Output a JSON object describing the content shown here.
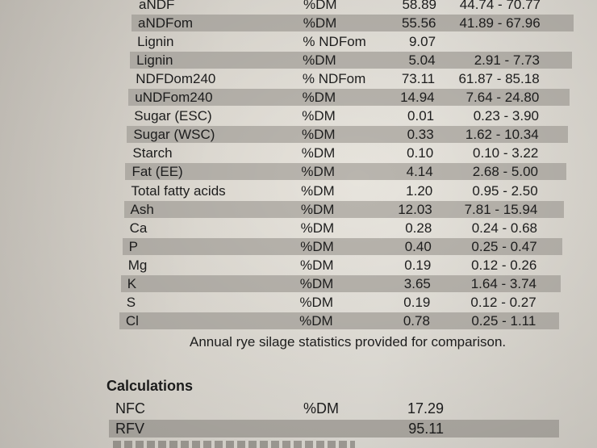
{
  "rows": [
    {
      "name": "aNDF",
      "unit": "%DM",
      "value": "58.89",
      "range": "44.74 - 70.77",
      "shaded": false
    },
    {
      "name": "aNDFom",
      "unit": "%DM",
      "value": "55.56",
      "range": "41.89 - 67.96",
      "shaded": true
    },
    {
      "name": "Lignin",
      "unit": "% NDFom",
      "value": "9.07",
      "range": "",
      "shaded": false
    },
    {
      "name": "Lignin",
      "unit": "%DM",
      "value": "5.04",
      "range": "2.91 - 7.73",
      "shaded": true
    },
    {
      "name": "NDFDom240",
      "unit": "% NDFom",
      "value": "73.11",
      "range": "61.87 - 85.18",
      "shaded": false
    },
    {
      "name": "uNDFom240",
      "unit": "%DM",
      "value": "14.94",
      "range": "7.64 - 24.80",
      "shaded": true
    },
    {
      "name": "Sugar (ESC)",
      "unit": "%DM",
      "value": "0.01",
      "range": "0.23 - 3.90",
      "shaded": false
    },
    {
      "name": "Sugar (WSC)",
      "unit": "%DM",
      "value": "0.33",
      "range": "1.62 - 10.34",
      "shaded": true
    },
    {
      "name": "Starch",
      "unit": "%DM",
      "value": "0.10",
      "range": "0.10 - 3.22",
      "shaded": false
    },
    {
      "name": "Fat (EE)",
      "unit": "%DM",
      "value": "4.14",
      "range": "2.68 - 5.00",
      "shaded": true
    },
    {
      "name": "Total fatty acids",
      "unit": "%DM",
      "value": "1.20",
      "range": "0.95 - 2.50",
      "shaded": false
    },
    {
      "name": "Ash",
      "unit": "%DM",
      "value": "12.03",
      "range": "7.81 - 15.94",
      "shaded": true
    },
    {
      "name": "Ca",
      "unit": "%DM",
      "value": "0.28",
      "range": "0.24 - 0.68",
      "shaded": false
    },
    {
      "name": "P",
      "unit": "%DM",
      "value": "0.40",
      "range": "0.25 - 0.47",
      "shaded": true
    },
    {
      "name": "Mg",
      "unit": "%DM",
      "value": "0.19",
      "range": "0.12 - 0.26",
      "shaded": false
    },
    {
      "name": "K",
      "unit": "%DM",
      "value": "3.65",
      "range": "1.64 - 3.74",
      "shaded": true
    },
    {
      "name": "S",
      "unit": "%DM",
      "value": "0.19",
      "range": "0.12 - 0.27",
      "shaded": false
    },
    {
      "name": "Cl",
      "unit": "%DM",
      "value": "0.78",
      "range": "0.25 - 1.11",
      "shaded": true
    }
  ],
  "note": "Annual rye silage statistics provided for comparison.",
  "calculations": {
    "title": "Calculations",
    "items": [
      {
        "name": "NFC",
        "unit": "%DM",
        "value": "17.29",
        "shaded": false
      },
      {
        "name": "RFV",
        "unit": "",
        "value": "95.11",
        "shaded": true
      }
    ]
  }
}
